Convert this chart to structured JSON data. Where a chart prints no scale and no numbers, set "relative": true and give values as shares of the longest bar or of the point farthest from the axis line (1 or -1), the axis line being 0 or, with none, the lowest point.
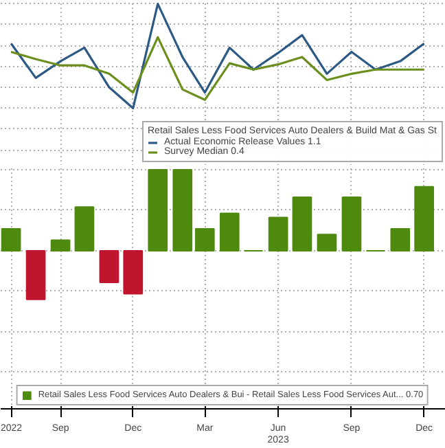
{
  "chart_data": [
    {
      "type": "line",
      "relative": true,
      "legend_title": "Retail Sales Less Food Services Auto Dealers & Build Mat & Gas St",
      "legend": "bottom right",
      "grid": true,
      "marker": "none",
      "line_style": "solid",
      "x": [
        "2022-07",
        "2022-08",
        "2022-09",
        "2022-10",
        "2022-11",
        "2022-12",
        "2023-01",
        "2023-02",
        "2023-03",
        "2023-04",
        "2023-05",
        "2023-06",
        "2023-07",
        "2023-08",
        "2023-09",
        "2023-10",
        "2023-11",
        "2023-12"
      ],
      "xlim": [
        "2022-06-18",
        "2023-12-28"
      ],
      "series": [
        {
          "name": "Actual Economic Release Values 1.1",
          "color": "#2c5a85",
          "values": [
            0.62,
            0.29,
            0.45,
            0.58,
            0.2,
            0,
            1,
            0.49,
            0.15,
            0.58,
            0.37,
            0.53,
            0.7,
            0.33,
            0.54,
            0.37,
            0.45,
            0.62
          ]
        },
        {
          "name": "Survey Median 0.4",
          "color": "#6a8f1c",
          "values": [
            0.54,
            0.47,
            0.41,
            0.41,
            0.33,
            0.15,
            0.68,
            0.18,
            0.08,
            0.43,
            0.37,
            0.42,
            0.49,
            0.27,
            0.33,
            0.37,
            0.37,
            0.37
          ]
        }
      ]
    },
    {
      "type": "bar",
      "relative": true,
      "legend": "bottom",
      "grid": true,
      "x": [
        "2022-07",
        "2022-08",
        "2022-09",
        "2022-10",
        "2022-11",
        "2022-12",
        "2023-01",
        "2023-02",
        "2023-03",
        "2023-04",
        "2023-05",
        "2023-06",
        "2023-07",
        "2023-08",
        "2023-09",
        "2023-10",
        "2023-11",
        "2023-12"
      ],
      "xlim": [
        "2022-06-18",
        "2023-12-28"
      ],
      "xticks": [
        {
          "value": "2022-07",
          "label": "2022"
        },
        {
          "value": "2022-09",
          "label": "Sep"
        },
        {
          "value": "2022-12",
          "label": "Dec"
        },
        {
          "value": "2023-03",
          "label": "Mar"
        },
        {
          "value": "2023-06",
          "label": "Jun\n2023"
        },
        {
          "value": "2023-09",
          "label": "Sep"
        },
        {
          "value": "2023-12",
          "label": "Dec"
        }
      ],
      "series": [
        {
          "name": "Retail Sales Less Food Services Auto Dealers & Bui - Retail Sales Less Food Services Aut... 0.70",
          "values": [
            0.27,
            -0.6,
            0.13,
            0.54,
            -0.39,
            -0.53,
            1,
            1,
            0.27,
            0.46,
            0,
            0.41,
            0.66,
            0.2,
            0.66,
            0,
            0.27,
            0.79
          ],
          "colors": [
            "#4e8a0e",
            "#c0152f",
            "#4e8a0e",
            "#4e8a0e",
            "#c0152f",
            "#c0152f",
            "#4e8a0e",
            "#4e8a0e",
            "#4e8a0e",
            "#4e8a0e",
            "#4e8a0e",
            "#4e8a0e",
            "#4e8a0e",
            "#4e8a0e",
            "#4e8a0e",
            "#4e8a0e",
            "#4e8a0e",
            "#4e8a0e"
          ]
        }
      ]
    }
  ]
}
